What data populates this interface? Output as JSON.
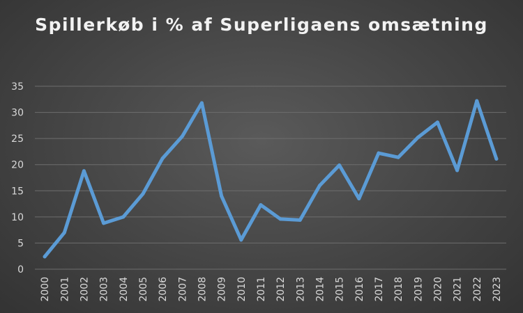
{
  "chart_data": {
    "type": "line",
    "title": "Spillerkøb i % af Superligaens omsætning",
    "xlabel": "",
    "ylabel": "",
    "ylim": [
      0,
      35
    ],
    "yticks": [
      0,
      5,
      10,
      15,
      20,
      25,
      30,
      35
    ],
    "grid": true,
    "legend": "none",
    "categories": [
      "2000",
      "2001",
      "2002",
      "2003",
      "2004",
      "2005",
      "2006",
      "2007",
      "2008",
      "2009",
      "2010",
      "2011",
      "2012",
      "2013",
      "2014",
      "2015",
      "2016",
      "2017",
      "2018",
      "2019",
      "2020",
      "2021",
      "2022",
      "2023"
    ],
    "series": [
      {
        "color": "#5b9bd5",
        "values": [
          2.4,
          7.0,
          18.8,
          8.8,
          10.0,
          14.4,
          21.2,
          25.4,
          31.8,
          14.0,
          5.6,
          12.3,
          9.6,
          9.4,
          16.0,
          19.9,
          13.5,
          22.2,
          21.4,
          25.2,
          28.1,
          18.9,
          32.2,
          21.1
        ]
      }
    ]
  },
  "colors": {
    "line": "#5b9bd5",
    "text": "#d9d9d9",
    "grid": "#6e6e6e"
  }
}
